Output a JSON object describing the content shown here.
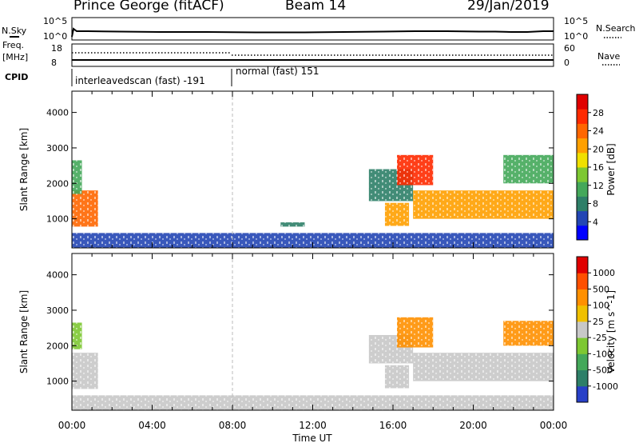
{
  "header": {
    "station": "Prince George (fitACF)",
    "beam": "Beam 14",
    "date": "29/Jan/2019"
  },
  "panels": {
    "nsky_label": "N.Sky",
    "nsky_ticks": [
      "10^5",
      "10^0"
    ],
    "nsearch_label": "N.Search",
    "nsearch_ticks": [
      "10^5",
      "10^0"
    ],
    "freq_label": "Freq.",
    "freq_unit": "[MHz]",
    "freq_ticks": [
      "18",
      "8"
    ],
    "nave_label": "Nave",
    "nave_ticks": [
      "60",
      "0"
    ],
    "cpid_label": "CPID",
    "cpid_modes": [
      "interleavedscan (fast) -191",
      "normal (fast) 151"
    ]
  },
  "chart_data": [
    {
      "type": "heatmap",
      "panel": "power",
      "ylabel": "Slant Range [km]",
      "yticks": [
        1000,
        2000,
        3000,
        4000
      ],
      "ylim": [
        180,
        4600
      ],
      "xlabel": "Time UT",
      "xticks": [
        "00:00",
        "04:00",
        "08:00",
        "12:00",
        "16:00",
        "20:00",
        "00:00"
      ],
      "xlim_hours": [
        0,
        24
      ],
      "colorbar": {
        "label": "Power [dB]",
        "ticks": [
          "28",
          "24",
          "20",
          "16",
          "12",
          "8",
          "4"
        ],
        "colors": [
          "#0000ff",
          "#2346b4",
          "#2e7f68",
          "#44a85a",
          "#7dc832",
          "#f0e000",
          "#ffa000",
          "#ff6600",
          "#ff2a00",
          "#e00000"
        ]
      },
      "regions": [
        {
          "t0": 0.0,
          "t1": 1.3,
          "r0": 780,
          "r1": 1800,
          "level": 7
        },
        {
          "t0": 0.0,
          "t1": 0.5,
          "r0": 1700,
          "r1": 2650,
          "level": 3
        },
        {
          "t0": 0.0,
          "t1": 24.0,
          "r0": 180,
          "r1": 600,
          "level": 1
        },
        {
          "t0": 10.4,
          "t1": 11.6,
          "r0": 780,
          "r1": 900,
          "level": 2
        },
        {
          "t0": 14.8,
          "t1": 17.0,
          "r0": 1500,
          "r1": 2400,
          "level": 2
        },
        {
          "t0": 15.6,
          "t1": 16.8,
          "r0": 800,
          "r1": 1450,
          "level": 6
        },
        {
          "t0": 16.2,
          "t1": 18.0,
          "r0": 1950,
          "r1": 2800,
          "level": 8
        },
        {
          "t0": 17.0,
          "t1": 24.0,
          "r0": 1000,
          "r1": 1800,
          "level": 6
        },
        {
          "t0": 21.5,
          "t1": 24.0,
          "r0": 2000,
          "r1": 2800,
          "level": 3
        }
      ]
    },
    {
      "type": "heatmap",
      "panel": "velocity",
      "ylabel": "Slant Range [km]",
      "yticks": [
        1000,
        2000,
        3000,
        4000
      ],
      "ylim": [
        180,
        4600
      ],
      "xlabel": "Time UT",
      "xticks": [
        "00:00",
        "04:00",
        "08:00",
        "12:00",
        "16:00",
        "20:00",
        "00:00"
      ],
      "xlim_hours": [
        0,
        24
      ],
      "colorbar": {
        "label": "Velocity [m s^-1]",
        "ticks": [
          "1000",
          "500",
          "100",
          "25",
          "-25",
          "-100",
          "-500",
          "-1000"
        ],
        "colors": [
          "#2840c8",
          "#2e7f68",
          "#44a85a",
          "#7dc832",
          "#c8c8c8",
          "#f0c000",
          "#ff9000",
          "#ff5000",
          "#e00000"
        ]
      },
      "regions": [
        {
          "t0": 0.0,
          "t1": 1.3,
          "r0": 780,
          "r1": 1800,
          "level": 4
        },
        {
          "t0": 0.0,
          "t1": 0.5,
          "r0": 1900,
          "r1": 2650,
          "level": 3
        },
        {
          "t0": 0.0,
          "t1": 24.0,
          "r0": 180,
          "r1": 600,
          "level": 4
        },
        {
          "t0": 14.8,
          "t1": 17.0,
          "r0": 1500,
          "r1": 2300,
          "level": 4
        },
        {
          "t0": 15.6,
          "t1": 16.8,
          "r0": 800,
          "r1": 1450,
          "level": 4
        },
        {
          "t0": 16.2,
          "t1": 18.0,
          "r0": 1950,
          "r1": 2800,
          "level": 6
        },
        {
          "t0": 17.0,
          "t1": 24.0,
          "r0": 1000,
          "r1": 1800,
          "level": 4
        },
        {
          "t0": 21.5,
          "t1": 24.0,
          "r0": 2000,
          "r1": 2700,
          "level": 6
        }
      ]
    }
  ]
}
